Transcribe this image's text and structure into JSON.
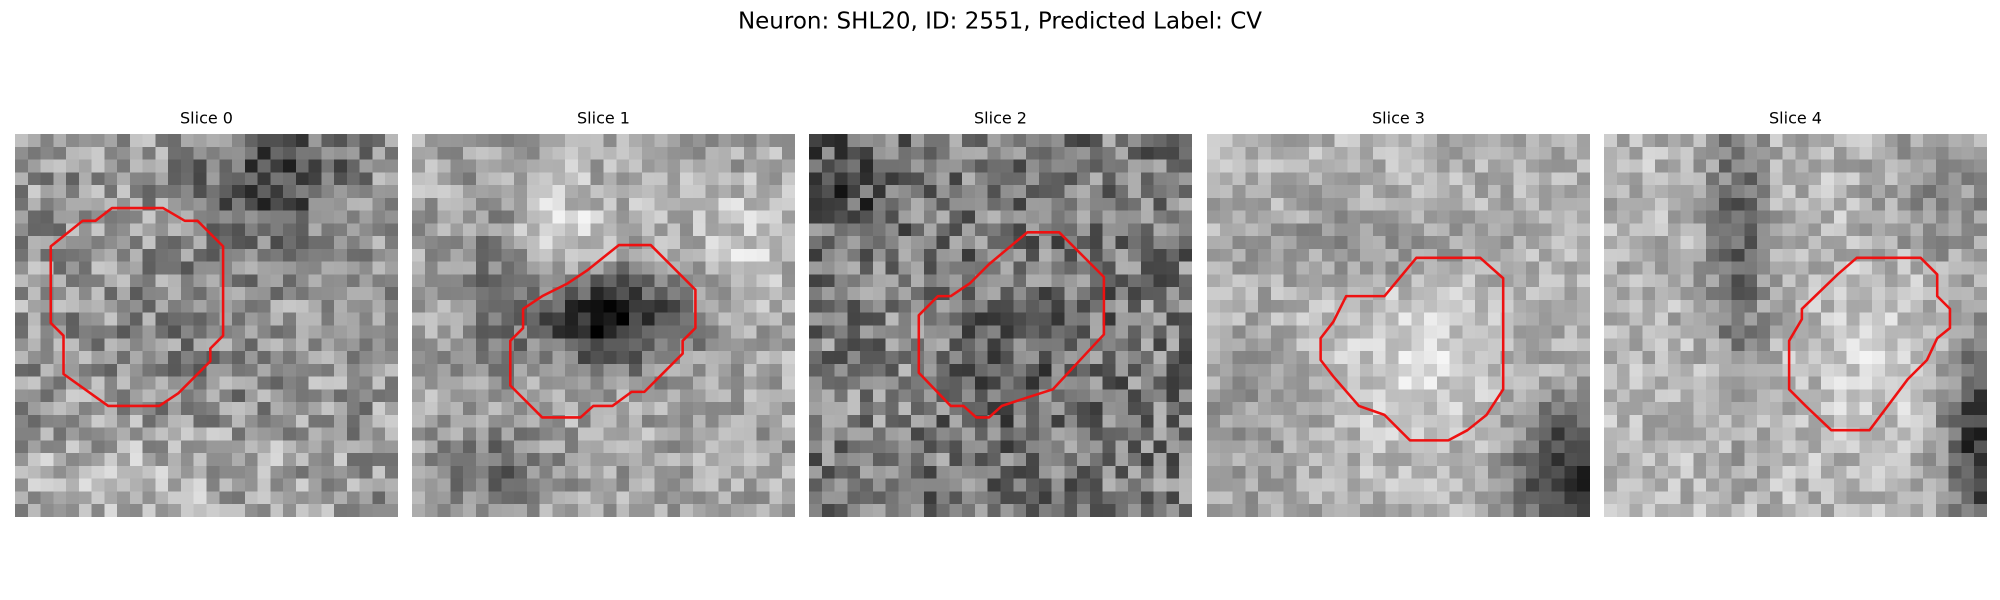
{
  "figure": {
    "title": "Neuron: SHL20, ID: 2551, Predicted Label: CV",
    "panels": [
      {
        "title": "Slice 0"
      },
      {
        "title": "Slice 1"
      },
      {
        "title": "Slice 2"
      },
      {
        "title": "Slice 3"
      },
      {
        "title": "Slice 4"
      }
    ]
  }
}
